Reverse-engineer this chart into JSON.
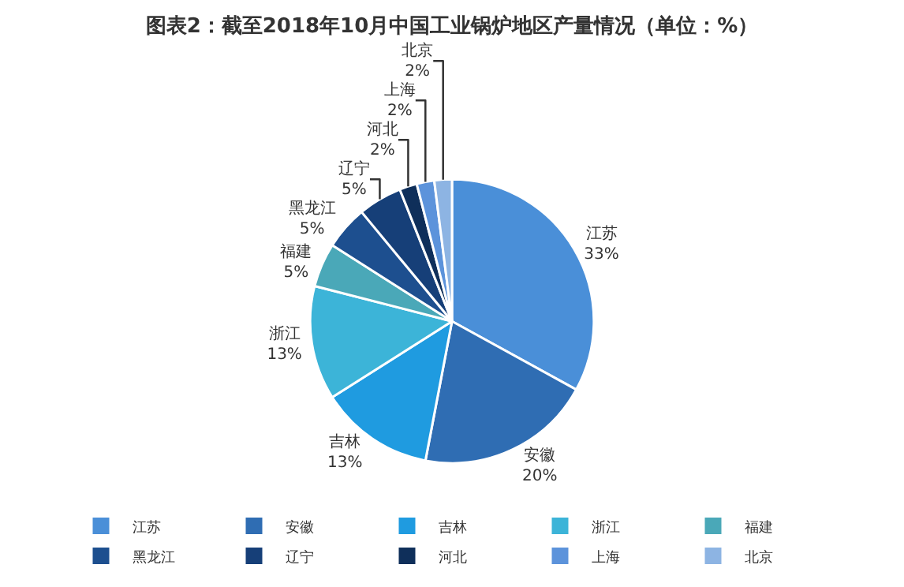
{
  "chart_data": {
    "type": "pie",
    "title": "图表2：截至2018年10月中国工业锅炉地区产量情况（单位：%）",
    "categories": [
      "江苏",
      "安徽",
      "吉林",
      "浙江",
      "福建",
      "黑龙江",
      "辽宁",
      "河北",
      "上海",
      "北京"
    ],
    "values": [
      33,
      20,
      13,
      13,
      5,
      5,
      5,
      2,
      2,
      2
    ],
    "value_labels": [
      "33%",
      "20%",
      "13%",
      "13%",
      "5%",
      "5%",
      "5%",
      "2%",
      "2%",
      "2%"
    ],
    "colors": [
      "#4a8fd8",
      "#2f6db3",
      "#1f9be0",
      "#3cb4d8",
      "#4aa8b8",
      "#1d4f8f",
      "#163f78",
      "#0f2f5a",
      "#5c93db",
      "#8db4e3"
    ],
    "legend": "bottom"
  }
}
